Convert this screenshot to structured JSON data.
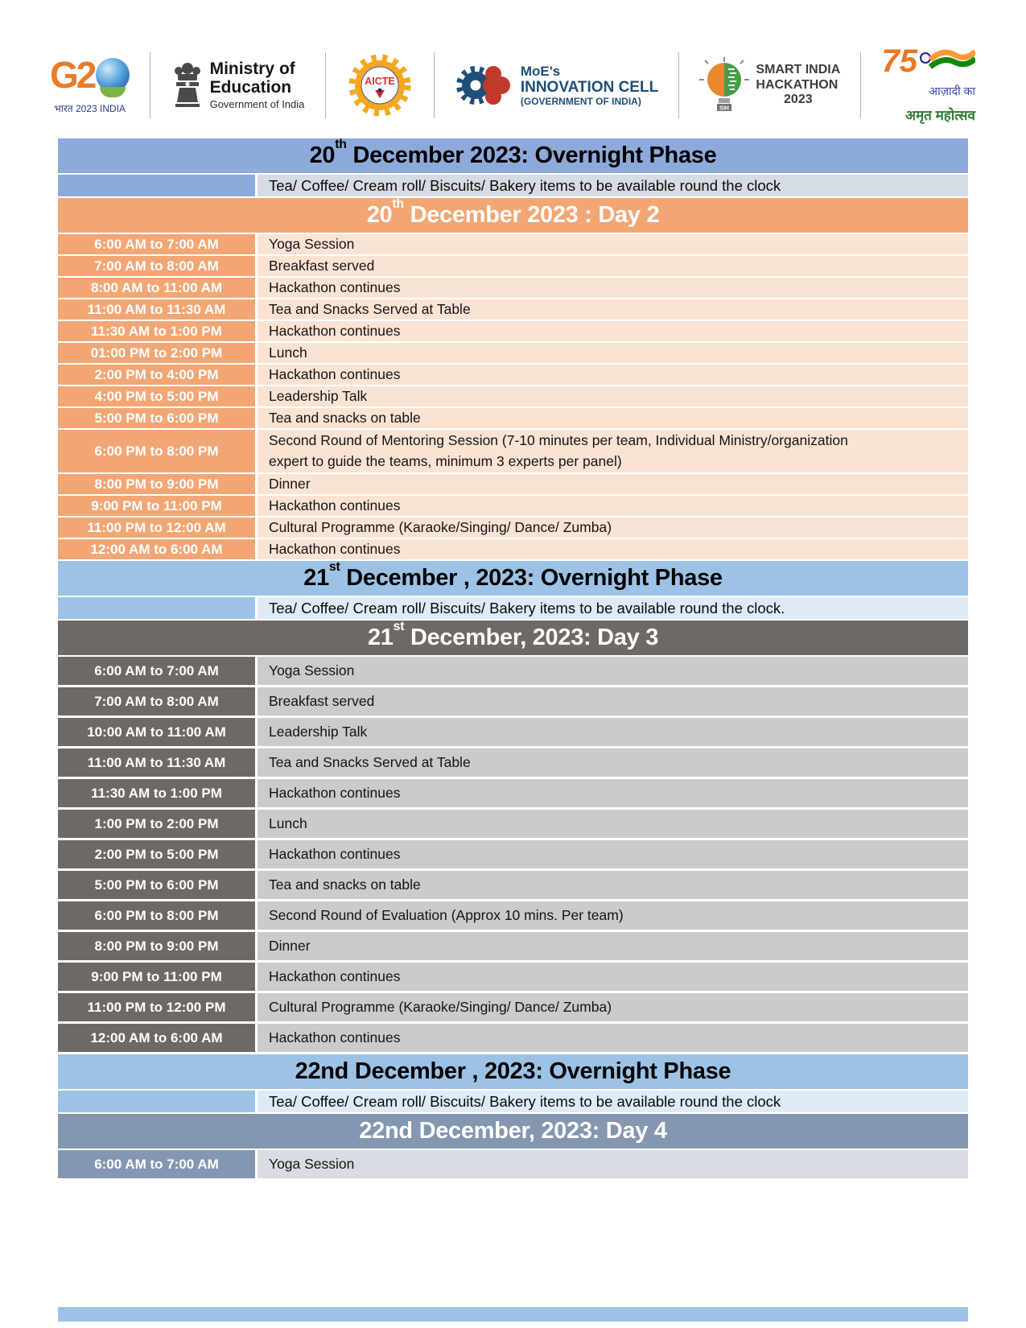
{
  "logos": {
    "g20": {
      "text": "G2",
      "tagline": "भारत 2023 INDIA"
    },
    "ministry": {
      "line1": "Ministry of",
      "line2": "Education",
      "line3": "Government of India"
    },
    "aicte": {
      "label": "AICTE"
    },
    "innovation_cell": {
      "line1": "MoE's",
      "line2": "INNOVATION CELL",
      "line3": "(GOVERNMENT OF INDIA)"
    },
    "sih": {
      "badge": "SIH",
      "line1": "SMART INDIA",
      "line2": "HACKATHON",
      "line3": "2023"
    },
    "azadi": {
      "number": "75",
      "line1": "आज़ादी का",
      "line2": "अमृत महोत्सव"
    }
  },
  "colors": {
    "overnight_blue_1": "#8EAADB",
    "overnight_note_1": "#D6DCE4",
    "overnight_blue_2": "#9CC3E5",
    "overnight_note_2": "#DEEBF7",
    "day2_orange": "#F2A674",
    "day2_orange_light": "#FBE3D4",
    "day3_gray": "#6E6964",
    "day3_gray_light": "#CCCACA",
    "day4_slate": "#8496B0",
    "day4_slate_light": "#D8DDE3"
  },
  "schedule": [
    {
      "kind": "header",
      "style": "blue1",
      "pre": "20",
      "sup": "th",
      "post": "  December 2023: Overnight Phase"
    },
    {
      "kind": "note",
      "style": "blue1",
      "text": "Tea/ Coffee/ Cream roll/ Biscuits/ Bakery items to be available round the clock"
    },
    {
      "kind": "header",
      "style": "orange",
      "pre": "20",
      "sup": "th",
      "post": " December 2023 : Day 2"
    },
    {
      "kind": "row",
      "style": "orange",
      "time": "6:00 AM to 7:00 AM",
      "activity": "Yoga Session"
    },
    {
      "kind": "row",
      "style": "orange",
      "time": "7:00 AM to 8:00 AM",
      "activity": "Breakfast served"
    },
    {
      "kind": "row",
      "style": "orange",
      "time": "8:00 AM to 11:00 AM",
      "activity": "Hackathon continues"
    },
    {
      "kind": "row",
      "style": "orange",
      "time": "11:00 AM to 11:30  AM",
      "activity": "Tea and Snacks Served at Table"
    },
    {
      "kind": "row",
      "style": "orange",
      "time": "11:30 AM to 1:00 PM",
      "activity": "Hackathon continues"
    },
    {
      "kind": "row",
      "style": "orange",
      "time": "01:00 PM to 2:00 PM",
      "activity": "Lunch"
    },
    {
      "kind": "row",
      "style": "orange",
      "time": "2:00 PM to 4:00 PM",
      "activity": "Hackathon continues"
    },
    {
      "kind": "row",
      "style": "orange",
      "time": "4:00 PM to 5:00 PM",
      "activity": "Leadership Talk"
    },
    {
      "kind": "row",
      "style": "orange",
      "time": "5:00 PM to 6:00 PM",
      "activity": "Tea and snacks on table"
    },
    {
      "kind": "row",
      "style": "orange",
      "tall": true,
      "time": "6:00 PM to 8:00 PM",
      "activity": "Second Round of Mentoring Session (7-10 minutes per team, Individual Ministry/organization expert to guide the teams, minimum 3 experts per panel)"
    },
    {
      "kind": "row",
      "style": "orange",
      "time": "8:00 PM to 9:00 PM",
      "activity": "Dinner"
    },
    {
      "kind": "row",
      "style": "orange",
      "time": "9:00 PM to 11:00 PM",
      "activity": "Hackathon continues"
    },
    {
      "kind": "row",
      "style": "orange",
      "time": "11:00 PM to 12:00 AM",
      "activity": "Cultural Programme (Karaoke/Singing/ Dance/ Zumba)"
    },
    {
      "kind": "row",
      "style": "orange",
      "time": "12:00 AM to 6:00 AM",
      "activity": "Hackathon continues"
    },
    {
      "kind": "header",
      "style": "blue2",
      "pre": "21",
      "sup": "st",
      "post": " December , 2023: Overnight Phase"
    },
    {
      "kind": "note",
      "style": "blue2",
      "text": "Tea/ Coffee/ Cream roll/ Biscuits/ Bakery items to be available round the clock."
    },
    {
      "kind": "header",
      "style": "gray",
      "pre": "21",
      "sup": "st",
      "post": " December, 2023: Day 3"
    },
    {
      "kind": "row",
      "style": "gray",
      "time": "6:00 AM to 7:00 AM",
      "activity": "Yoga Session"
    },
    {
      "kind": "row",
      "style": "gray",
      "time": "7:00 AM to 8:00 AM",
      "activity": "Breakfast served"
    },
    {
      "kind": "row",
      "style": "gray",
      "time": "10:00 AM to 11:00 AM",
      "activity": "Leadership Talk"
    },
    {
      "kind": "row",
      "style": "gray",
      "time": "11:00 AM to 11:30 AM",
      "activity": "Tea and Snacks Served at Table"
    },
    {
      "kind": "row",
      "style": "gray",
      "time": "11:30 AM to 1:00 PM",
      "activity": "Hackathon continues"
    },
    {
      "kind": "row",
      "style": "gray",
      "time": "1:00 PM to 2:00 PM",
      "activity": "Lunch"
    },
    {
      "kind": "row",
      "style": "gray",
      "time": "2:00 PM  to 5:00 PM",
      "activity": "Hackathon continues"
    },
    {
      "kind": "row",
      "style": "gray",
      "time": "5:00 PM to 6:00 PM",
      "activity": "Tea and snacks on table"
    },
    {
      "kind": "row",
      "style": "gray",
      "time": "6:00 PM to 8:00 PM",
      "activity": "Second Round of Evaluation (Approx 10 mins. Per team)"
    },
    {
      "kind": "row",
      "style": "gray",
      "time": "8:00 PM to 9:00 PM",
      "activity": "Dinner"
    },
    {
      "kind": "row",
      "style": "gray",
      "time": "9:00 PM to 11:00 PM",
      "activity": "Hackathon continues"
    },
    {
      "kind": "row",
      "style": "gray",
      "time": "11:00 PM to 12:00 PM",
      "activity": "Cultural Programme (Karaoke/Singing/ Dance/ Zumba)"
    },
    {
      "kind": "row",
      "style": "gray",
      "time": "12:00 AM to 6:00 AM",
      "activity": "Hackathon continues"
    },
    {
      "kind": "header",
      "style": "blue2",
      "pre": "22nd",
      "sup": "",
      "post": " December , 2023: Overnight Phase"
    },
    {
      "kind": "note",
      "style": "blue2",
      "text": "Tea/ Coffee/ Cream roll/ Biscuits/ Bakery items to be available round the clock"
    },
    {
      "kind": "header",
      "style": "slate",
      "pre": "22nd",
      "sup": "",
      "post": " December, 2023: Day 4"
    },
    {
      "kind": "row",
      "style": "slate",
      "time": "6:00 AM to 7:00 AM",
      "activity": "Yoga Session"
    },
    {
      "kind": "bar",
      "style": "blue2"
    }
  ]
}
